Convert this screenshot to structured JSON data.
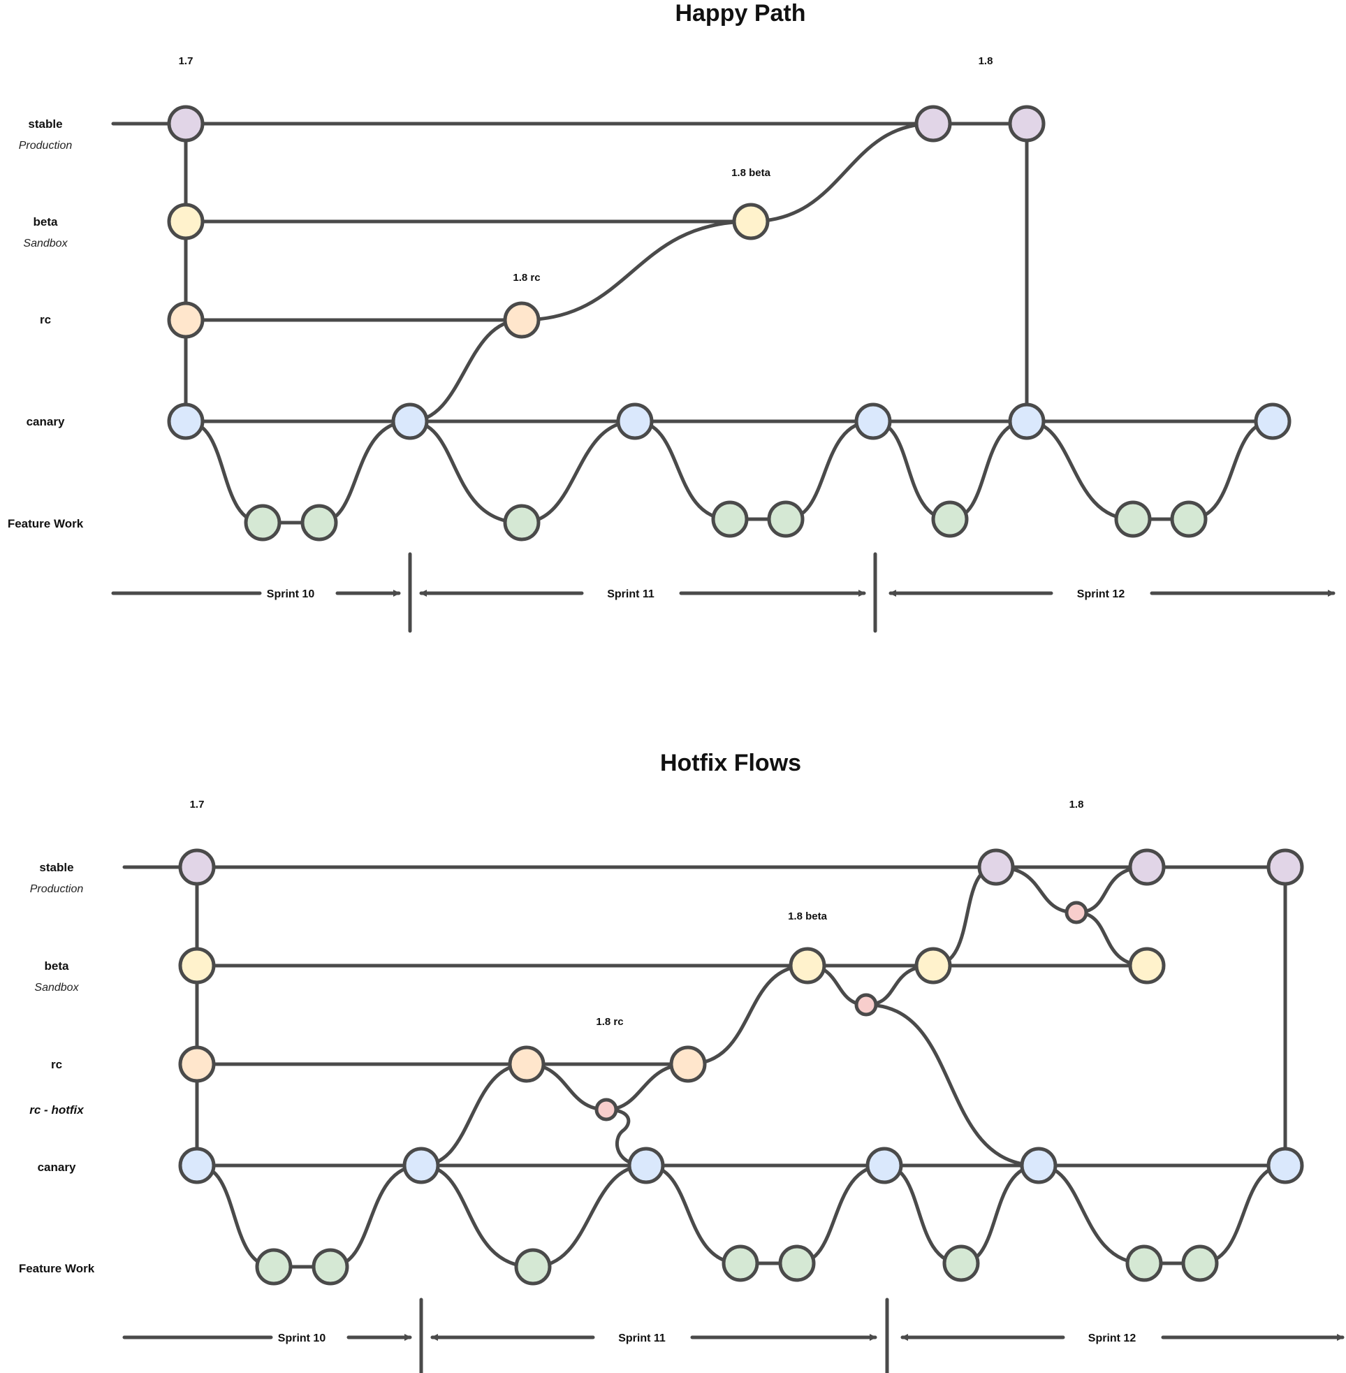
{
  "colors": {
    "stable": "#e1d5e7",
    "beta": "#fff2cc",
    "rc": "#ffe6cc",
    "canary": "#dae8fc",
    "feature": "#d5e8d4",
    "hotfix": "#f8cecc",
    "stroke": "#4a4a4a"
  },
  "happy": {
    "title": "Happy Path",
    "lanes": {
      "stable": "stable",
      "stable_sub": "Production",
      "beta": "beta",
      "beta_sub": "Sandbox",
      "rc": "rc",
      "canary": "canary",
      "feature": "Feature Work"
    },
    "tags": {
      "v17": "1.7",
      "v18": "1.8",
      "v18beta": "1.8 beta",
      "v18rc": "1.8 rc"
    },
    "sprints": [
      "Sprint 10",
      "Sprint 11",
      "Sprint 12"
    ]
  },
  "hotfix": {
    "title": "Hotfix Flows",
    "lanes": {
      "stable": "stable",
      "stable_sub": "Production",
      "beta": "beta",
      "beta_sub": "Sandbox",
      "rc": "rc",
      "rc_hotfix": "rc - hotfix",
      "canary": "canary",
      "feature": "Feature Work"
    },
    "tags": {
      "v17": "1.7",
      "v18": "1.8",
      "v18beta": "1.8 beta",
      "v18rc": "1.8 rc"
    },
    "sprints": [
      "Sprint 10",
      "Sprint 11",
      "Sprint 12"
    ]
  }
}
